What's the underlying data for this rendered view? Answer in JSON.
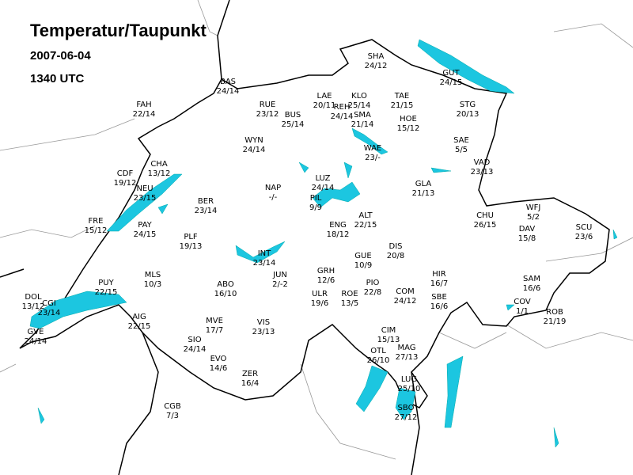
{
  "header": {
    "title": "Temperatur/Taupunkt",
    "date": "2007-06-04",
    "time": "1340 UTC"
  },
  "stations": [
    {
      "code": "SHA",
      "value": "24/12"
    },
    {
      "code": "GUT",
      "value": "24/15"
    },
    {
      "code": "BAS",
      "value": "24/14"
    },
    {
      "code": "LAE",
      "value": "20/11"
    },
    {
      "code": "KLO",
      "value": "25/14"
    },
    {
      "code": "REH",
      "value": "24/14"
    },
    {
      "code": "SMA",
      "value": "21/14"
    },
    {
      "code": "TAE",
      "value": "21/15"
    },
    {
      "code": "HOE",
      "value": "15/12"
    },
    {
      "code": "STG",
      "value": "20/13"
    },
    {
      "code": "FAH",
      "value": "22/14"
    },
    {
      "code": "RUE",
      "value": "23/12"
    },
    {
      "code": "BUS",
      "value": "25/14"
    },
    {
      "code": "WYN",
      "value": "24/14"
    },
    {
      "code": "SAE",
      "value": "5/5"
    },
    {
      "code": "WAE",
      "value": "23/-"
    },
    {
      "code": "VAD",
      "value": "23/13"
    },
    {
      "code": "CHA",
      "value": "13/12"
    },
    {
      "code": "CDF",
      "value": "19/12"
    },
    {
      "code": "LUZ",
      "value": "24/14"
    },
    {
      "code": "NAP",
      "value": "-/-"
    },
    {
      "code": "GLA",
      "value": "21/13"
    },
    {
      "code": "NEU",
      "value": "23/15"
    },
    {
      "code": "BER",
      "value": "23/14"
    },
    {
      "code": "PIL",
      "value": "9/9"
    },
    {
      "code": "ALT",
      "value": "22/15"
    },
    {
      "code": "WFJ",
      "value": "5/2"
    },
    {
      "code": "CHU",
      "value": "26/15"
    },
    {
      "code": "FRE",
      "value": "15/12"
    },
    {
      "code": "PAY",
      "value": "24/15"
    },
    {
      "code": "ENG",
      "value": "18/12"
    },
    {
      "code": "DAV",
      "value": "15/8"
    },
    {
      "code": "SCU",
      "value": "23/6"
    },
    {
      "code": "PLF",
      "value": "19/13"
    },
    {
      "code": "INT",
      "value": "23/14"
    },
    {
      "code": "DIS",
      "value": "20/8"
    },
    {
      "code": "GUE",
      "value": "10/9"
    },
    {
      "code": "GRH",
      "value": "12/6"
    },
    {
      "code": "JUN",
      "value": "2/-2"
    },
    {
      "code": "MLS",
      "value": "10/3"
    },
    {
      "code": "HIR",
      "value": "16/7"
    },
    {
      "code": "ABO",
      "value": "16/10"
    },
    {
      "code": "PUY",
      "value": "22/15"
    },
    {
      "code": "PIO",
      "value": "22/8"
    },
    {
      "code": "SAM",
      "value": "16/6"
    },
    {
      "code": "ULR",
      "value": "19/6"
    },
    {
      "code": "ROE",
      "value": "13/5"
    },
    {
      "code": "COM",
      "value": "24/12"
    },
    {
      "code": "SBE",
      "value": "16/6"
    },
    {
      "code": "DOL",
      "value": "13/12"
    },
    {
      "code": "CGI",
      "value": "23/14"
    },
    {
      "code": "COV",
      "value": "1/1"
    },
    {
      "code": "AIG",
      "value": "22/15"
    },
    {
      "code": "ROB",
      "value": "21/19"
    },
    {
      "code": "MVE",
      "value": "17/7"
    },
    {
      "code": "VIS",
      "value": "23/13"
    },
    {
      "code": "CIM",
      "value": "15/13"
    },
    {
      "code": "SIO",
      "value": "24/14"
    },
    {
      "code": "GVE",
      "value": "24/14"
    },
    {
      "code": "OTL",
      "value": "26/10"
    },
    {
      "code": "MAG",
      "value": "27/13"
    },
    {
      "code": "EVO",
      "value": "14/6"
    },
    {
      "code": "ZER",
      "value": "16/4"
    },
    {
      "code": "LUG",
      "value": "25/10"
    },
    {
      "code": "CGB",
      "value": "7/3"
    },
    {
      "code": "SBO",
      "value": "27/12"
    }
  ]
}
